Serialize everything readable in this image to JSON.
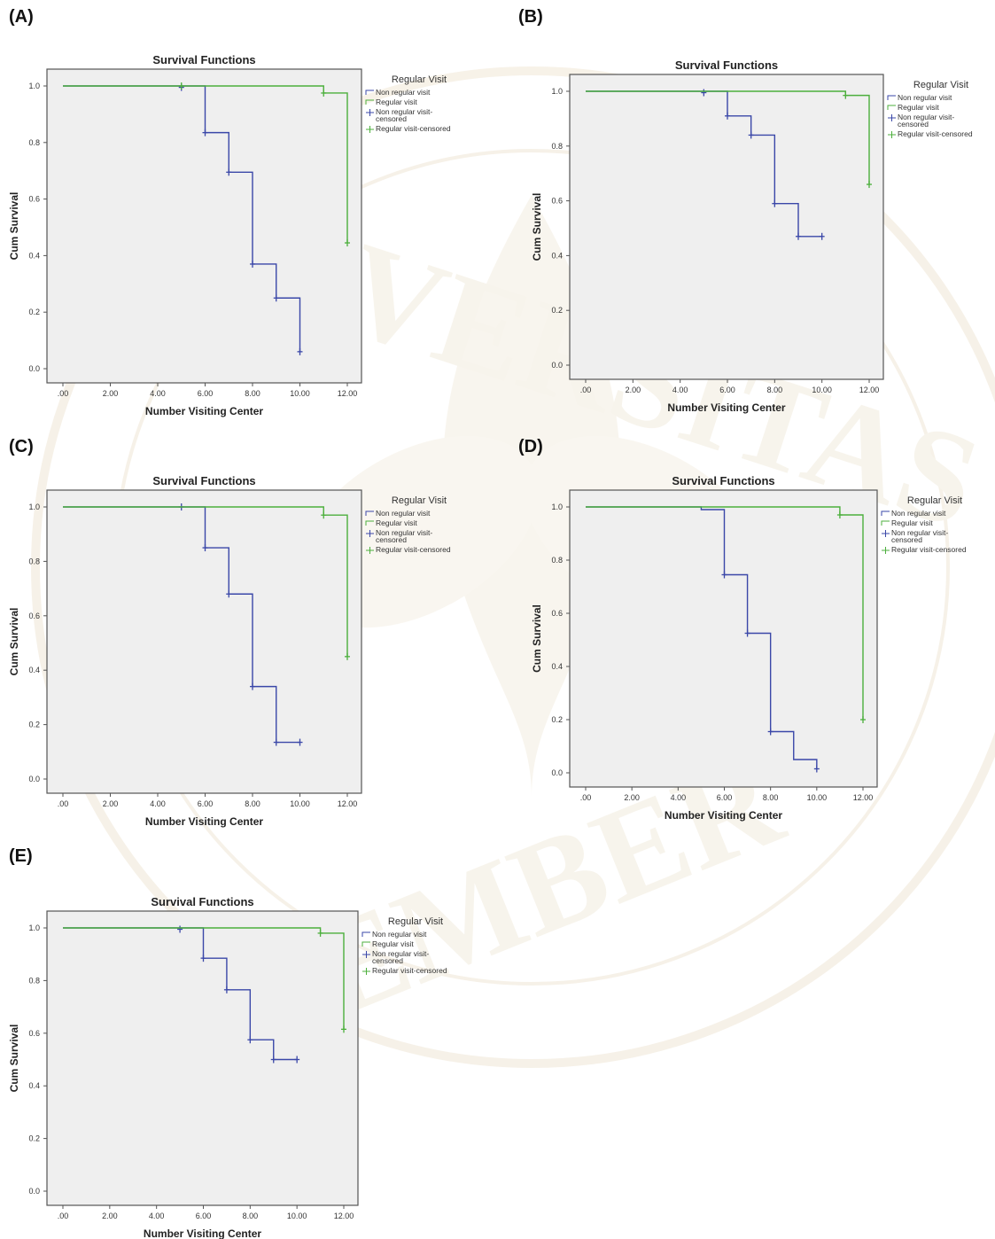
{
  "colors": {
    "non_regular": "#3a47a8",
    "regular": "#4caf3c",
    "plot_bg": "#efefef",
    "frame": "#555555",
    "watermark": "#e9dcc3"
  },
  "panel_labels": [
    "(A)",
    "(B)",
    "(C)",
    "(D)",
    "(E)"
  ],
  "watermark": {
    "top_text": "UNIVERSITAS",
    "bottom_text": "JEMBER"
  },
  "chart_data": [
    {
      "type": "line",
      "title": "Survival Functions",
      "xlabel": "Number Visiting Center",
      "ylabel": "Cum Survival",
      "xlim": [
        0,
        12
      ],
      "ylim": [
        0,
        1
      ],
      "x_ticks": [
        ".00",
        "2.00",
        "4.00",
        "6.00",
        "8.00",
        "10.00",
        "12.00"
      ],
      "y_ticks": [
        "0.0",
        "0.2",
        "0.4",
        "0.6",
        "0.8",
        "1.0"
      ],
      "legend_title": "Regular Visit",
      "legend": [
        "Non regular visit",
        "Regular visit",
        "Non regular visit-censored",
        "Regular visit-censored"
      ],
      "series": [
        {
          "name": "Non regular visit",
          "steps": [
            [
              0,
              1.0
            ],
            [
              6,
              0.835
            ],
            [
              7,
              0.695
            ],
            [
              8,
              0.37
            ],
            [
              9,
              0.25
            ],
            [
              10,
              0.06
            ]
          ],
          "censored": [
            [
              5,
              0.995
            ],
            [
              6,
              0.835
            ],
            [
              7,
              0.695
            ],
            [
              8,
              0.37
            ],
            [
              9,
              0.25
            ],
            [
              10,
              0.06
            ]
          ]
        },
        {
          "name": "Regular visit",
          "steps": [
            [
              0,
              1.0
            ],
            [
              11,
              0.975
            ],
            [
              12,
              0.445
            ]
          ],
          "censored": [
            [
              5,
              1.0
            ],
            [
              11,
              0.975
            ],
            [
              12,
              0.445
            ]
          ]
        }
      ]
    },
    {
      "type": "line",
      "title": "Survival Functions",
      "xlabel": "Number Visiting Center",
      "ylabel": "Cum Survival",
      "xlim": [
        0,
        12
      ],
      "ylim": [
        0,
        1
      ],
      "x_ticks": [
        ".00",
        "2.00",
        "4.00",
        "6.00",
        "8.00",
        "10.00",
        "12.00"
      ],
      "y_ticks": [
        "0.0",
        "0.2",
        "0.4",
        "0.6",
        "0.8",
        "1.0"
      ],
      "legend_title": "Regular Visit",
      "legend": [
        "Non regular visit",
        "Regular visit",
        "Non regular visit-censored",
        "Regular visit-censored"
      ],
      "series": [
        {
          "name": "Non regular visit",
          "steps": [
            [
              0,
              1.0
            ],
            [
              6,
              0.91
            ],
            [
              7,
              0.84
            ],
            [
              8,
              0.59
            ],
            [
              9,
              0.47
            ],
            [
              10,
              0.47
            ]
          ],
          "censored": [
            [
              5,
              0.995
            ],
            [
              6,
              0.91
            ],
            [
              7,
              0.84
            ],
            [
              8,
              0.59
            ],
            [
              9,
              0.47
            ],
            [
              10,
              0.47
            ]
          ]
        },
        {
          "name": "Regular visit",
          "steps": [
            [
              0,
              1.0
            ],
            [
              11,
              0.985
            ],
            [
              12,
              0.66
            ]
          ],
          "censored": [
            [
              11,
              0.985
            ],
            [
              12,
              0.66
            ]
          ]
        }
      ]
    },
    {
      "type": "line",
      "title": "Survival Functions",
      "xlabel": "Number Visiting Center",
      "ylabel": "Cum Survival",
      "xlim": [
        0,
        12
      ],
      "ylim": [
        0,
        1
      ],
      "x_ticks": [
        ".00",
        "2.00",
        "4.00",
        "6.00",
        "8.00",
        "10.00",
        "12.00"
      ],
      "y_ticks": [
        "0.0",
        "0.2",
        "0.4",
        "0.6",
        "0.8",
        "1.0"
      ],
      "legend_title": "Regular Visit",
      "legend": [
        "Non regular visit",
        "Regular visit",
        "Non regular visit-censored",
        "Regular visit-censored"
      ],
      "series": [
        {
          "name": "Non regular visit",
          "steps": [
            [
              0,
              1.0
            ],
            [
              6,
              0.85
            ],
            [
              7,
              0.68
            ],
            [
              8,
              0.34
            ],
            [
              9,
              0.135
            ],
            [
              10,
              0.135
            ]
          ],
          "censored": [
            [
              5,
              1.0
            ],
            [
              6,
              0.85
            ],
            [
              7,
              0.68
            ],
            [
              8,
              0.34
            ],
            [
              9,
              0.135
            ],
            [
              10,
              0.135
            ]
          ]
        },
        {
          "name": "Regular visit",
          "steps": [
            [
              0,
              1.0
            ],
            [
              11,
              0.97
            ],
            [
              12,
              0.45
            ]
          ],
          "censored": [
            [
              11,
              0.97
            ],
            [
              12,
              0.45
            ]
          ]
        }
      ]
    },
    {
      "type": "line",
      "title": "Survival Functions",
      "xlabel": "Number Visiting Center",
      "ylabel": "Cum Survival",
      "xlim": [
        0,
        12
      ],
      "ylim": [
        0,
        1
      ],
      "x_ticks": [
        ".00",
        "2.00",
        "4.00",
        "6.00",
        "8.00",
        "10.00",
        "12.00"
      ],
      "y_ticks": [
        "0.0",
        "0.2",
        "0.4",
        "0.6",
        "0.8",
        "1.0"
      ],
      "legend_title": "Regular Visit",
      "legend": [
        "Non regular visit",
        "Regular visit",
        "Non regular visit-censored",
        "Regular visit-censored"
      ],
      "series": [
        {
          "name": "Non regular visit",
          "steps": [
            [
              0,
              1.0
            ],
            [
              5,
              0.99
            ],
            [
              6,
              0.745
            ],
            [
              7,
              0.525
            ],
            [
              8,
              0.155
            ],
            [
              9,
              0.05
            ],
            [
              10,
              0.015
            ]
          ],
          "censored": [
            [
              6,
              0.745
            ],
            [
              7,
              0.525
            ],
            [
              8,
              0.155
            ],
            [
              10,
              0.015
            ]
          ]
        },
        {
          "name": "Regular visit",
          "steps": [
            [
              0,
              1.0
            ],
            [
              11,
              0.97
            ],
            [
              12,
              0.2
            ]
          ],
          "censored": [
            [
              11,
              0.97
            ],
            [
              12,
              0.2
            ]
          ]
        }
      ]
    },
    {
      "type": "line",
      "title": "Survival Functions",
      "xlabel": "Number Visiting Center",
      "ylabel": "Cum Survival",
      "xlim": [
        0,
        12
      ],
      "ylim": [
        0,
        1
      ],
      "x_ticks": [
        ".00",
        "2.00",
        "4.00",
        "6.00",
        "8.00",
        "10.00",
        "12.00"
      ],
      "y_ticks": [
        "0.0",
        "0.2",
        "0.4",
        "0.6",
        "0.8",
        "1.0"
      ],
      "legend_title": "Regular Visit",
      "legend": [
        "Non regular visit",
        "Regular visit",
        "Non regular visit-censored",
        "Regular visit-censored"
      ],
      "series": [
        {
          "name": "Non regular visit",
          "steps": [
            [
              0,
              1.0
            ],
            [
              6,
              0.885
            ],
            [
              7,
              0.765
            ],
            [
              8,
              0.575
            ],
            [
              9,
              0.5
            ],
            [
              10,
              0.5
            ]
          ],
          "censored": [
            [
              5,
              0.995
            ],
            [
              6,
              0.885
            ],
            [
              7,
              0.765
            ],
            [
              8,
              0.575
            ],
            [
              9,
              0.5
            ],
            [
              10,
              0.5
            ]
          ]
        },
        {
          "name": "Regular visit",
          "steps": [
            [
              0,
              1.0
            ],
            [
              11,
              0.98
            ],
            [
              12,
              0.615
            ]
          ],
          "censored": [
            [
              11,
              0.98
            ],
            [
              12,
              0.615
            ]
          ]
        }
      ]
    }
  ]
}
